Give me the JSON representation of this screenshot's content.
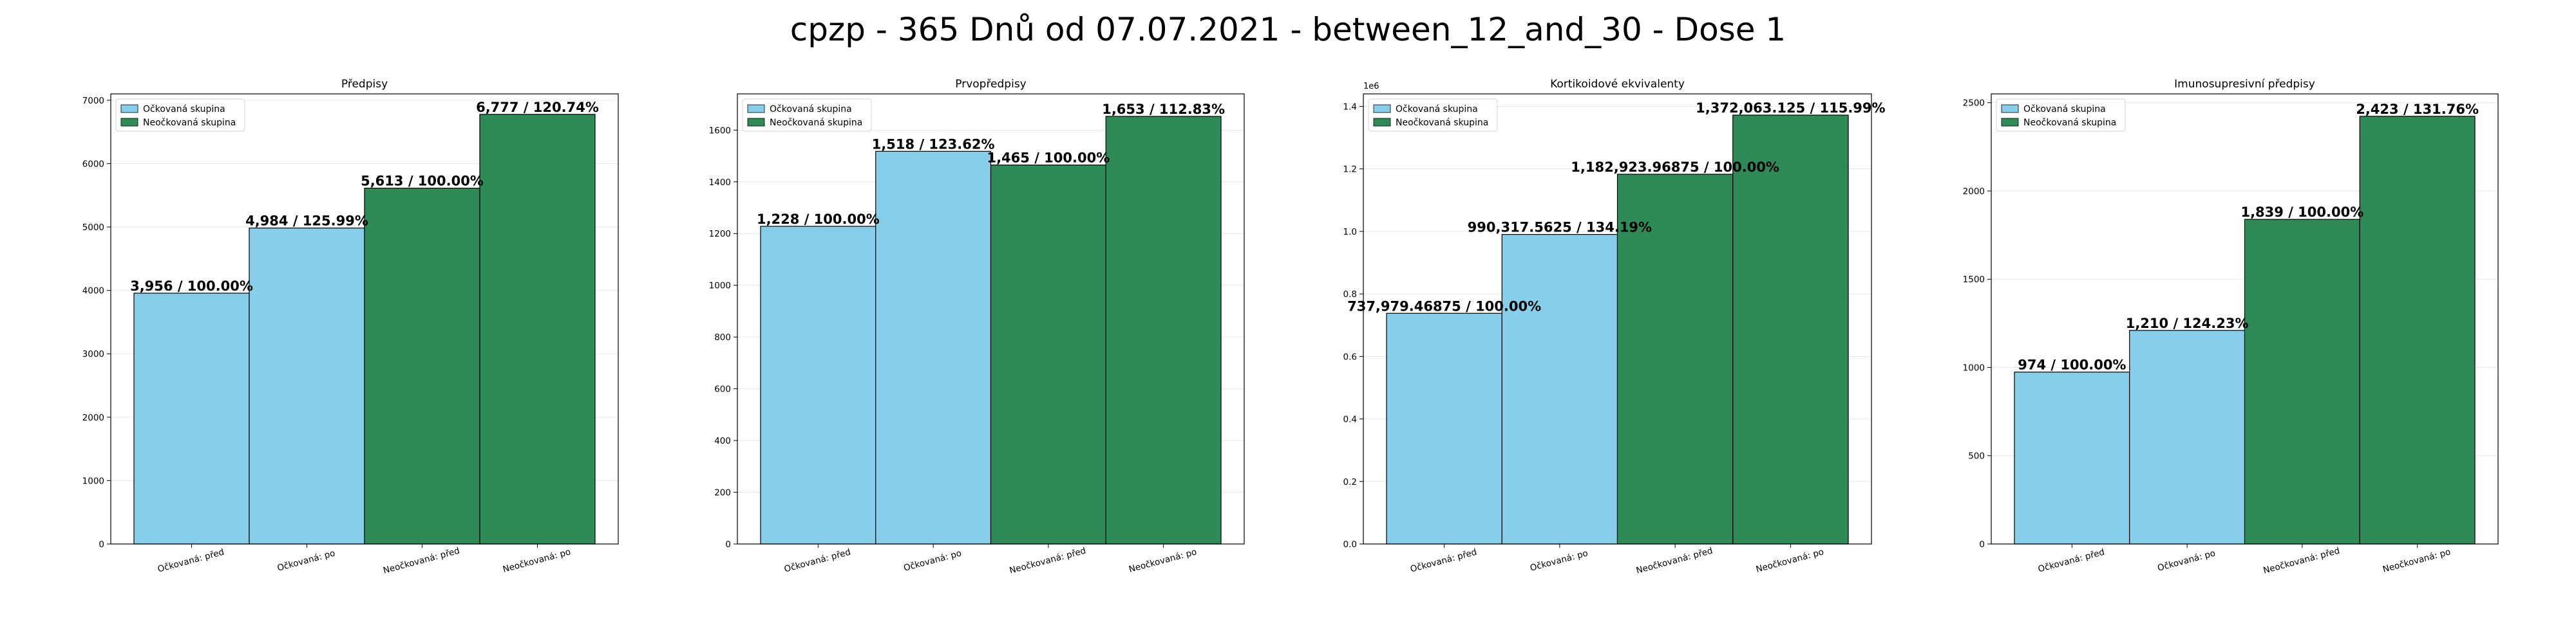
{
  "figure": {
    "title": "cpzp - 365 Dnů od 07.07.2021 - between_12_and_30 - Dose 1"
  },
  "colors": {
    "vaccinated": "#87ceeb",
    "unvaccinated": "#2e8b57",
    "edge": "#000000",
    "grid": "#e6e6e6"
  },
  "chart_data": [
    {
      "type": "bar",
      "title": "Předpisy",
      "categories": [
        "Očkovaná: před",
        "Očkovaná: po",
        "Neočkovaná: před",
        "Neočkovaná: po"
      ],
      "values": [
        3956,
        4984,
        5613,
        6777
      ],
      "bar_labels": [
        "3,956 / 100.00%",
        "4,984 / 125.99%",
        "5,613 / 100.00%",
        "6,777 / 120.74%"
      ],
      "groups": [
        "vaccinated",
        "vaccinated",
        "unvaccinated",
        "unvaccinated"
      ],
      "legend": [
        "Očkovaná skupina",
        "Neočkovaná skupina"
      ],
      "legend_position": "top-left",
      "ylim": [
        0,
        7100
      ],
      "yticks": [
        0,
        1000,
        2000,
        3000,
        4000,
        5000,
        6000,
        7000
      ],
      "ytick_labels": [
        "0",
        "1000",
        "2000",
        "3000",
        "4000",
        "5000",
        "6000",
        "7000"
      ],
      "y_offset_label": "",
      "grid": "horizontal"
    },
    {
      "type": "bar",
      "title": "Prvopředpisy",
      "categories": [
        "Očkovaná: před",
        "Očkovaná: po",
        "Neočkovaná: před",
        "Neočkovaná: po"
      ],
      "values": [
        1228,
        1518,
        1465,
        1653
      ],
      "bar_labels": [
        "1,228 / 100.00%",
        "1,518 / 123.62%",
        "1,465 / 100.00%",
        "1,653 / 112.83%"
      ],
      "groups": [
        "vaccinated",
        "vaccinated",
        "unvaccinated",
        "unvaccinated"
      ],
      "legend": [
        "Očkovaná skupina",
        "Neočkovaná skupina"
      ],
      "legend_position": "top-left",
      "ylim": [
        0,
        1740
      ],
      "yticks": [
        0,
        200,
        400,
        600,
        800,
        1000,
        1200,
        1400,
        1600
      ],
      "ytick_labels": [
        "0",
        "200",
        "400",
        "600",
        "800",
        "1000",
        "1200",
        "1400",
        "1600"
      ],
      "y_offset_label": "",
      "grid": "horizontal"
    },
    {
      "type": "bar",
      "title": "Kortikoidové ekvivalenty",
      "categories": [
        "Očkovaná: před",
        "Očkovaná: po",
        "Neočkovaná: před",
        "Neočkovaná: po"
      ],
      "values": [
        737979.46875,
        990317.5625,
        1182923.96875,
        1372063.125
      ],
      "bar_labels": [
        "737,979.46875 / 100.00%",
        "990,317.5625 / 134.19%",
        "1,182,923.96875 / 100.00%",
        "1,372,063.125 / 115.99%"
      ],
      "groups": [
        "vaccinated",
        "vaccinated",
        "unvaccinated",
        "unvaccinated"
      ],
      "legend": [
        "Očkovaná skupina",
        "Neočkovaná skupina"
      ],
      "legend_position": "top-left",
      "ylim": [
        0,
        1440000
      ],
      "yticks": [
        0,
        200000,
        400000,
        600000,
        800000,
        1000000,
        1200000,
        1400000
      ],
      "ytick_labels": [
        "0.0",
        "0.2",
        "0.4",
        "0.6",
        "0.8",
        "1.0",
        "1.2",
        "1.4"
      ],
      "y_offset_label": "1e6",
      "grid": "horizontal"
    },
    {
      "type": "bar",
      "title": "Imunosupresivní předpisy",
      "categories": [
        "Očkovaná: před",
        "Očkovaná: po",
        "Neočkovaná: před",
        "Neočkovaná: po"
      ],
      "values": [
        974,
        1210,
        1839,
        2423
      ],
      "bar_labels": [
        "974 / 100.00%",
        "1,210 / 124.23%",
        "1,839 / 100.00%",
        "2,423 / 131.76%"
      ],
      "groups": [
        "vaccinated",
        "vaccinated",
        "unvaccinated",
        "unvaccinated"
      ],
      "legend": [
        "Očkovaná skupina",
        "Neočkovaná skupina"
      ],
      "legend_position": "top-left",
      "ylim": [
        0,
        2550
      ],
      "yticks": [
        0,
        500,
        1000,
        1500,
        2000,
        2500
      ],
      "ytick_labels": [
        "0",
        "500",
        "1000",
        "1500",
        "2000",
        "2500"
      ],
      "y_offset_label": "",
      "grid": "horizontal"
    }
  ]
}
